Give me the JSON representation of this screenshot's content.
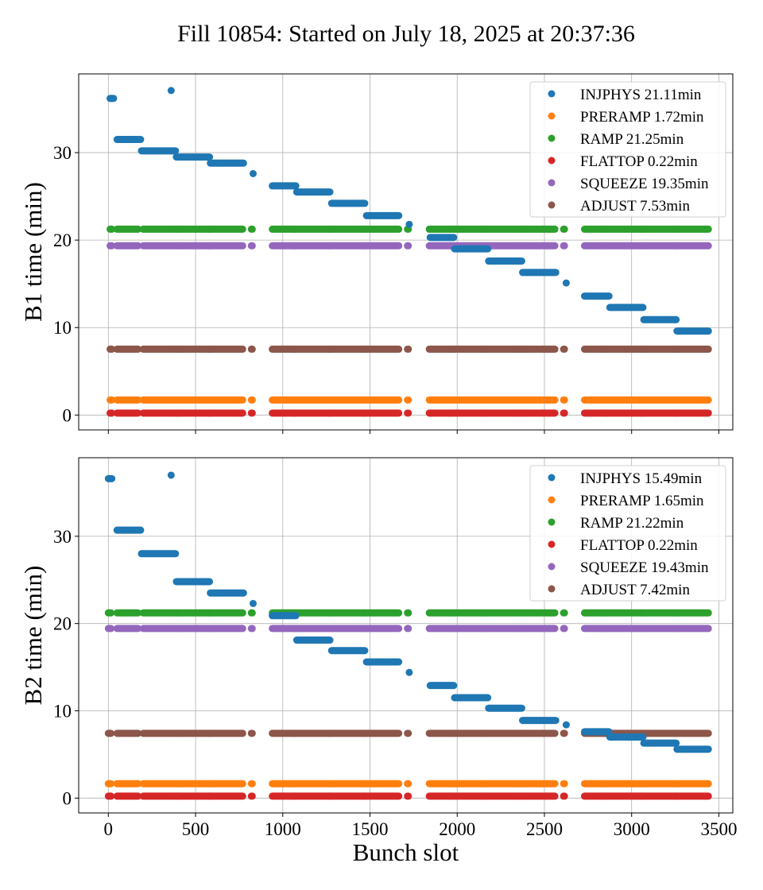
{
  "figure": {
    "title": "Fill 10854: Started on July 18, 2025 at 20:37:36"
  },
  "series_colors": {
    "INJPHYS": "#1f77b4",
    "PRERAMP": "#ff7f0e",
    "RAMP": "#2ca02c",
    "FLATTOP": "#d62728",
    "SQUEEZE": "#9467bd",
    "ADJUST": "#8c564b"
  },
  "chart_data": [
    {
      "type": "scatter",
      "ylabel": "B1 time (min)",
      "xlabel": "",
      "xlim": [
        -170,
        3580
      ],
      "ylim": [
        -1.7,
        39.0
      ],
      "xticks": [
        0,
        500,
        1000,
        1500,
        2000,
        2500,
        3000,
        3500
      ],
      "yticks": [
        0,
        10,
        20,
        30
      ],
      "grid": true,
      "legend_position": "top-right",
      "legend": [
        "INJPHYS 21.11min",
        "PRERAMP 1.72min",
        "RAMP 21.25min",
        "FLATTOP 0.22min",
        "SQUEEZE 19.35min",
        "ADJUST 7.53min"
      ],
      "trains": [
        [
          10,
          20
        ],
        [
          50,
          170
        ],
        [
          200,
          390
        ],
        [
          390,
          580
        ],
        [
          580,
          770
        ],
        [
          820,
          825
        ],
        [
          940,
          1070
        ],
        [
          1070,
          1270
        ],
        [
          1270,
          1470
        ],
        [
          1470,
          1665
        ],
        [
          1715,
          1720
        ],
        [
          1840,
          1960
        ],
        [
          1960,
          2160
        ],
        [
          2160,
          2360
        ],
        [
          2360,
          2560
        ],
        [
          2610,
          2615
        ],
        [
          2730,
          2850
        ],
        [
          2850,
          3050
        ],
        [
          3050,
          3250
        ],
        [
          3250,
          3440
        ]
      ],
      "series": [
        {
          "name": "INJPHYS",
          "points": [
            {
              "x": [
                10,
                30
              ],
              "y": 36.2
            },
            {
              "x": [
                360,
                360
              ],
              "y": 37.1
            },
            {
              "x": [
                50,
                185
              ],
              "y": 31.5
            },
            {
              "x": [
                190,
                385
              ],
              "y": 30.2
            },
            {
              "x": [
                390,
                580
              ],
              "y": 29.5
            },
            {
              "x": [
                585,
                775
              ],
              "y": 28.8
            },
            {
              "x": [
                830,
                830
              ],
              "y": 27.6
            },
            {
              "x": [
                940,
                1075
              ],
              "y": 26.2
            },
            {
              "x": [
                1080,
                1270
              ],
              "y": 25.5
            },
            {
              "x": [
                1280,
                1470
              ],
              "y": 24.2
            },
            {
              "x": [
                1480,
                1665
              ],
              "y": 22.8
            },
            {
              "x": [
                1725,
                1725
              ],
              "y": 21.8
            },
            {
              "x": [
                1845,
                1980
              ],
              "y": 20.3
            },
            {
              "x": [
                1985,
                2175
              ],
              "y": 19.0
            },
            {
              "x": [
                2180,
                2370
              ],
              "y": 17.6
            },
            {
              "x": [
                2375,
                2565
              ],
              "y": 16.3
            },
            {
              "x": [
                2625,
                2625
              ],
              "y": 15.1
            },
            {
              "x": [
                2730,
                2870
              ],
              "y": 13.6
            },
            {
              "x": [
                2875,
                3065
              ],
              "y": 12.3
            },
            {
              "x": [
                3070,
                3255
              ],
              "y": 10.9
            },
            {
              "x": [
                3260,
                3440
              ],
              "y": 9.6
            }
          ]
        },
        {
          "name": "PRERAMP",
          "y": 1.72
        },
        {
          "name": "RAMP",
          "y": 21.25
        },
        {
          "name": "FLATTOP",
          "y": 0.22
        },
        {
          "name": "SQUEEZE",
          "y": 19.35
        },
        {
          "name": "ADJUST",
          "y": 7.53
        }
      ]
    },
    {
      "type": "scatter",
      "ylabel": "B2 time (min)",
      "xlabel": "Bunch slot",
      "xlim": [
        -170,
        3580
      ],
      "ylim": [
        -1.7,
        39.0
      ],
      "xticks": [
        0,
        500,
        1000,
        1500,
        2000,
        2500,
        3000,
        3500
      ],
      "yticks": [
        0,
        10,
        20,
        30
      ],
      "grid": true,
      "legend_position": "top-right",
      "legend": [
        "INJPHYS 15.49min",
        "PRERAMP 1.65min",
        "RAMP 21.22min",
        "FLATTOP 0.22min",
        "SQUEEZE 19.43min",
        "ADJUST 7.42min"
      ],
      "trains": [
        [
          0,
          15
        ],
        [
          50,
          170
        ],
        [
          200,
          390
        ],
        [
          390,
          580
        ],
        [
          580,
          770
        ],
        [
          820,
          825
        ],
        [
          940,
          1070
        ],
        [
          1070,
          1270
        ],
        [
          1270,
          1470
        ],
        [
          1470,
          1665
        ],
        [
          1715,
          1720
        ],
        [
          1840,
          1960
        ],
        [
          1960,
          2160
        ],
        [
          2160,
          2360
        ],
        [
          2360,
          2560
        ],
        [
          2610,
          2615
        ],
        [
          2730,
          2850
        ],
        [
          2850,
          3050
        ],
        [
          3050,
          3250
        ],
        [
          3250,
          3440
        ]
      ],
      "series": [
        {
          "name": "INJPHYS",
          "points": [
            {
              "x": [
                0,
                20
              ],
              "y": 36.6
            },
            {
              "x": [
                360,
                360
              ],
              "y": 37.0
            },
            {
              "x": [
                50,
                185
              ],
              "y": 30.7
            },
            {
              "x": [
                190,
                385
              ],
              "y": 28.0
            },
            {
              "x": [
                390,
                580
              ],
              "y": 24.8
            },
            {
              "x": [
                585,
                775
              ],
              "y": 23.5
            },
            {
              "x": [
                830,
                830
              ],
              "y": 22.3
            },
            {
              "x": [
                940,
                1075
              ],
              "y": 20.9
            },
            {
              "x": [
                1080,
                1270
              ],
              "y": 18.1
            },
            {
              "x": [
                1280,
                1470
              ],
              "y": 16.9
            },
            {
              "x": [
                1480,
                1665
              ],
              "y": 15.6
            },
            {
              "x": [
                1725,
                1725
              ],
              "y": 14.4
            },
            {
              "x": [
                1845,
                1980
              ],
              "y": 12.9
            },
            {
              "x": [
                1985,
                2175
              ],
              "y": 11.5
            },
            {
              "x": [
                2180,
                2370
              ],
              "y": 10.3
            },
            {
              "x": [
                2375,
                2565
              ],
              "y": 8.9
            },
            {
              "x": [
                2625,
                2625
              ],
              "y": 8.4
            },
            {
              "x": [
                2730,
                2870
              ],
              "y": 7.6
            },
            {
              "x": [
                2875,
                3065
              ],
              "y": 7.0
            },
            {
              "x": [
                3070,
                3255
              ],
              "y": 6.3
            },
            {
              "x": [
                3260,
                3440
              ],
              "y": 5.6
            }
          ]
        },
        {
          "name": "PRERAMP",
          "y": 1.65
        },
        {
          "name": "RAMP",
          "y": 21.22
        },
        {
          "name": "FLATTOP",
          "y": 0.22
        },
        {
          "name": "SQUEEZE",
          "y": 19.43
        },
        {
          "name": "ADJUST",
          "y": 7.42
        }
      ]
    }
  ]
}
